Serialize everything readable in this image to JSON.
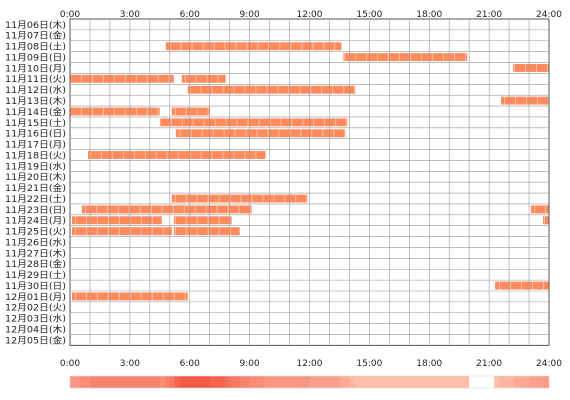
{
  "chart_data": {
    "type": "timeline",
    "x_axis": {
      "range_hours": [
        0,
        24
      ],
      "tick_labels": [
        "0:00",
        "3:00",
        "6:00",
        "9:00",
        "12:00",
        "15:00",
        "18:00",
        "21:00",
        "24:00"
      ],
      "tick_hours": [
        0,
        3,
        6,
        9,
        12,
        15,
        18,
        21,
        24
      ]
    },
    "grid": true,
    "colors": {
      "activity": "#ff8a5c",
      "grid": "#999999",
      "axis": "#555555",
      "text": "#222222"
    },
    "rows": [
      {
        "date": "11月06日(木)",
        "intervals": []
      },
      {
        "date": "11月07日(金)",
        "intervals": []
      },
      {
        "date": "11月08日(土)",
        "intervals": [
          [
            4.8,
            13.6
          ]
        ]
      },
      {
        "date": "11月09日(日)",
        "intervals": [
          [
            13.7,
            19.9
          ]
        ]
      },
      {
        "date": "11月10日(月)",
        "intervals": [
          [
            22.2,
            24.0
          ]
        ]
      },
      {
        "date": "11月11日(火)",
        "intervals": [
          [
            0.0,
            5.2
          ],
          [
            5.6,
            7.8
          ]
        ]
      },
      {
        "date": "11月12日(水)",
        "intervals": [
          [
            5.9,
            14.3
          ]
        ]
      },
      {
        "date": "11月13日(木)",
        "intervals": [
          [
            21.6,
            24.0
          ]
        ]
      },
      {
        "date": "11月14日(金)",
        "intervals": [
          [
            0.0,
            4.5
          ],
          [
            5.1,
            7.0
          ]
        ]
      },
      {
        "date": "11月15日(土)",
        "intervals": [
          [
            4.5,
            13.9
          ]
        ]
      },
      {
        "date": "11月16日(日)",
        "intervals": [
          [
            5.3,
            13.8
          ]
        ]
      },
      {
        "date": "11月17日(月)",
        "intervals": []
      },
      {
        "date": "11月18日(火)",
        "intervals": [
          [
            0.9,
            5.8
          ],
          [
            5.8,
            9.8
          ]
        ]
      },
      {
        "date": "11月19日(水)",
        "intervals": []
      },
      {
        "date": "11月20日(木)",
        "intervals": []
      },
      {
        "date": "11月21日(金)",
        "intervals": []
      },
      {
        "date": "11月22日(土)",
        "intervals": [
          [
            5.1,
            11.9
          ]
        ]
      },
      {
        "date": "11月23日(日)",
        "intervals": [
          [
            0.6,
            9.1
          ],
          [
            23.1,
            24.0
          ]
        ]
      },
      {
        "date": "11月24日(月)",
        "intervals": [
          [
            0.1,
            4.6
          ],
          [
            5.2,
            8.1
          ],
          [
            23.7,
            24.0
          ]
        ]
      },
      {
        "date": "11月25日(火)",
        "intervals": [
          [
            0.1,
            5.1
          ],
          [
            5.2,
            8.5
          ]
        ]
      },
      {
        "date": "11月26日(水)",
        "intervals": []
      },
      {
        "date": "11月27日(木)",
        "intervals": []
      },
      {
        "date": "11月28日(金)",
        "intervals": []
      },
      {
        "date": "11月29日(土)",
        "intervals": []
      },
      {
        "date": "11月30日(日)",
        "intervals": [
          [
            21.3,
            24.0
          ]
        ]
      },
      {
        "date": "12月01日(月)",
        "intervals": [
          [
            0.1,
            5.9
          ]
        ]
      },
      {
        "date": "12月02日(火)",
        "intervals": []
      },
      {
        "date": "12月03日(水)",
        "intervals": []
      },
      {
        "date": "12月04日(木)",
        "intervals": []
      },
      {
        "date": "12月05日(金)",
        "intervals": []
      }
    ]
  }
}
